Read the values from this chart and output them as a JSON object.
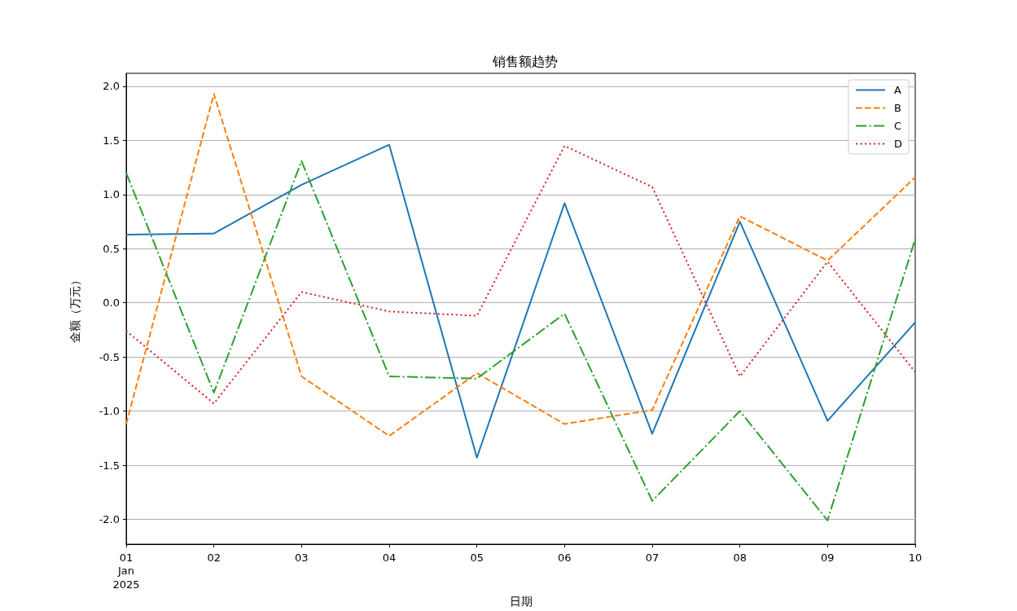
{
  "chart_data": {
    "type": "line",
    "title": "销售额趋势",
    "xlabel": "日期",
    "ylabel": "金额（万元）",
    "x": [
      "2025-01-01",
      "2025-01-02",
      "2025-01-03",
      "2025-01-04",
      "2025-01-05",
      "2025-01-06",
      "2025-01-07",
      "2025-01-08",
      "2025-01-09",
      "2025-01-10"
    ],
    "xlim": [
      "2025-01-01",
      "2025-01-10"
    ],
    "xticks": [
      {
        "value": "2025-01-01",
        "label": "01\nJan\n2025"
      },
      {
        "value": "2025-01-02",
        "label": "02"
      },
      {
        "value": "2025-01-03",
        "label": "03"
      },
      {
        "value": "2025-01-04",
        "label": "04"
      },
      {
        "value": "2025-01-05",
        "label": "05"
      },
      {
        "value": "2025-01-06",
        "label": "06"
      },
      {
        "value": "2025-01-07",
        "label": "07"
      },
      {
        "value": "2025-01-08",
        "label": "08"
      },
      {
        "value": "2025-01-09",
        "label": "09"
      },
      {
        "value": "2025-01-10",
        "label": "10"
      }
    ],
    "ylim": [
      -2.23,
      2.12
    ],
    "yticks": [
      {
        "value": -2,
        "label": "-2.0"
      },
      {
        "value": -1.5,
        "label": "-1.5"
      },
      {
        "value": -1,
        "label": "-1.0"
      },
      {
        "value": -0.5,
        "label": "-0.5"
      },
      {
        "value": 0,
        "label": "0.0"
      },
      {
        "value": 0.5,
        "label": "0.5"
      },
      {
        "value": 1,
        "label": "1.0"
      },
      {
        "value": 1.5,
        "label": "1.5"
      },
      {
        "value": 2,
        "label": "2.0"
      }
    ],
    "series": [
      {
        "name": "A",
        "color": "#1f77b4",
        "line_style": "solid",
        "values": [
          0.63,
          0.64,
          1.09,
          1.46,
          -1.43,
          0.92,
          -1.21,
          0.75,
          -1.09,
          -0.18
        ]
      },
      {
        "name": "B",
        "color": "#ff7f0e",
        "line_style": "dashed",
        "values": [
          -1.12,
          1.93,
          -0.68,
          -1.23,
          -0.65,
          -1.12,
          -0.99,
          0.8,
          0.39,
          1.16
        ]
      },
      {
        "name": "C",
        "color": "#2ca02c",
        "line_style": "dashdot",
        "values": [
          1.2,
          -0.83,
          1.31,
          -0.68,
          -0.7,
          -0.1,
          -1.83,
          -1.0,
          -2.01,
          0.59
        ]
      },
      {
        "name": "D",
        "color": "#d62728",
        "line_style": "dotted",
        "values": [
          -0.26,
          -0.93,
          0.1,
          -0.08,
          -0.12,
          1.45,
          1.07,
          -0.68,
          0.38,
          -0.64
        ]
      }
    ],
    "grid": "y",
    "legend": "top right",
    "marker": "none"
  }
}
